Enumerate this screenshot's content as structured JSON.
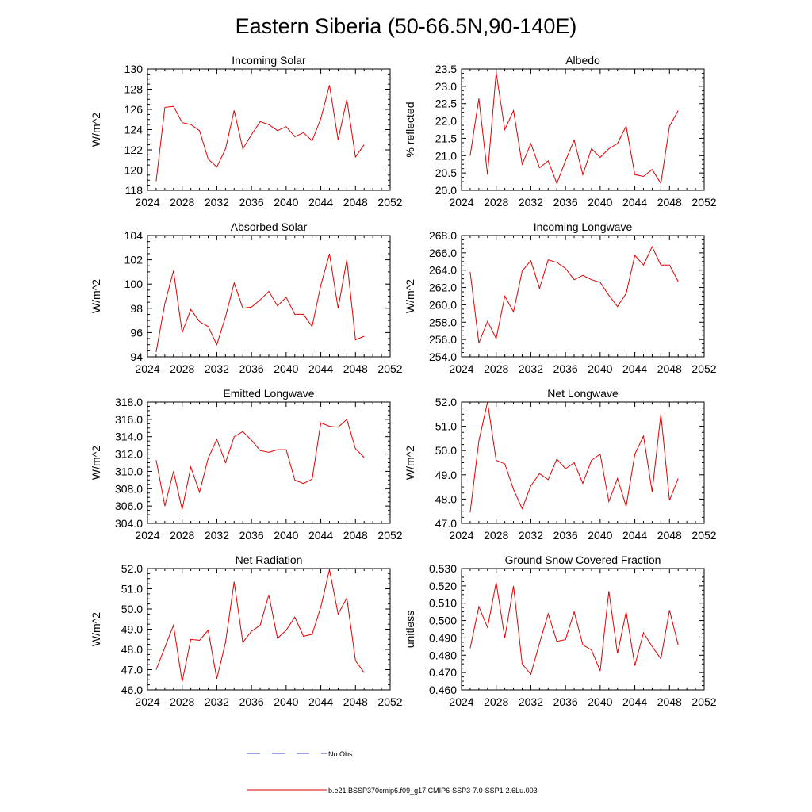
{
  "figure": {
    "title": "Eastern Siberia (50-66.5N,90-140E)",
    "legend": [
      {
        "label": "No Obs",
        "color": "#3b3bd0",
        "style": "dashed"
      },
      {
        "label": "b.e21.BSSP370cmip6.f09_g17.CMIP6-SSP3-7.0-SSP1-2.6Lu.003",
        "color": "#e00000",
        "style": "solid"
      }
    ]
  },
  "chart_data": [
    {
      "type": "line",
      "title": "Incoming Solar",
      "ylabel": "W/m^2",
      "xlim": [
        2024,
        2052
      ],
      "ylim": [
        118,
        130
      ],
      "xticks": [
        "2024",
        "2028",
        "2032",
        "2036",
        "2040",
        "2044",
        "2048",
        "2052"
      ],
      "yticks": [
        "118",
        "120",
        "122",
        "124",
        "126",
        "128",
        "130"
      ],
      "x": [
        2025,
        2026,
        2027,
        2028,
        2029,
        2030,
        2031,
        2032,
        2033,
        2034,
        2035,
        2036,
        2037,
        2038,
        2039,
        2040,
        2041,
        2042,
        2043,
        2044,
        2045,
        2046,
        2047,
        2048,
        2049
      ],
      "series": [
        {
          "color": "#e00000",
          "values": [
            118.9,
            126.2,
            126.3,
            124.7,
            124.5,
            123.9,
            121.1,
            120.3,
            122.1,
            125.9,
            122.1,
            123.5,
            124.8,
            124.5,
            123.9,
            124.3,
            123.3,
            123.7,
            122.9,
            125.1,
            128.4,
            123.0,
            127.0,
            121.3,
            122.5
          ]
        }
      ]
    },
    {
      "type": "line",
      "title": "Albedo",
      "ylabel": "% reflected",
      "xlim": [
        2024,
        2052
      ],
      "ylim": [
        20.0,
        23.5
      ],
      "xticks": [
        "2024",
        "2028",
        "2032",
        "2036",
        "2040",
        "2044",
        "2048",
        "2052"
      ],
      "yticks": [
        "20.0",
        "20.5",
        "21.0",
        "21.5",
        "22.0",
        "22.5",
        "23.0",
        "23.5"
      ],
      "x": [
        2025,
        2026,
        2027,
        2028,
        2029,
        2030,
        2031,
        2032,
        2033,
        2034,
        2035,
        2036,
        2037,
        2038,
        2039,
        2040,
        2041,
        2042,
        2043,
        2044,
        2045,
        2046,
        2047,
        2048,
        2049
      ],
      "series": [
        {
          "color": "#e00000",
          "values": [
            21.0,
            22.65,
            20.45,
            23.4,
            21.75,
            22.3,
            20.75,
            21.35,
            20.65,
            20.85,
            20.2,
            20.85,
            21.45,
            20.45,
            21.2,
            20.95,
            21.2,
            21.35,
            21.85,
            20.45,
            20.4,
            20.6,
            20.2,
            21.85,
            22.3
          ]
        }
      ]
    },
    {
      "type": "line",
      "title": "Absorbed Solar",
      "ylabel": "W/m^2",
      "xlim": [
        2024,
        2052
      ],
      "ylim": [
        94,
        104
      ],
      "xticks": [
        "2024",
        "2028",
        "2032",
        "2036",
        "2040",
        "2044",
        "2048",
        "2052"
      ],
      "yticks": [
        "94",
        "96",
        "98",
        "100",
        "102",
        "104"
      ],
      "x": [
        2025,
        2026,
        2027,
        2028,
        2029,
        2030,
        2031,
        2032,
        2033,
        2034,
        2035,
        2036,
        2037,
        2038,
        2039,
        2040,
        2041,
        2042,
        2043,
        2044,
        2045,
        2046,
        2047,
        2048,
        2049
      ],
      "series": [
        {
          "color": "#e00000",
          "values": [
            94.4,
            98.4,
            101.1,
            96.0,
            97.9,
            96.9,
            96.5,
            95.0,
            97.3,
            100.1,
            98.0,
            98.1,
            98.7,
            99.4,
            98.2,
            98.9,
            97.5,
            97.5,
            96.5,
            99.9,
            102.5,
            98.0,
            102.0,
            95.4,
            95.7
          ]
        }
      ]
    },
    {
      "type": "line",
      "title": "Incoming Longwave",
      "ylabel": "W/m^2",
      "xlim": [
        2024,
        2052
      ],
      "ylim": [
        254.0,
        268.0
      ],
      "xticks": [
        "2024",
        "2028",
        "2032",
        "2036",
        "2040",
        "2044",
        "2048",
        "2052"
      ],
      "yticks": [
        "254.0",
        "256.0",
        "258.0",
        "260.0",
        "262.0",
        "264.0",
        "266.0",
        "268.0"
      ],
      "x": [
        2025,
        2026,
        2027,
        2028,
        2029,
        2030,
        2031,
        2032,
        2033,
        2034,
        2035,
        2036,
        2037,
        2038,
        2039,
        2040,
        2041,
        2042,
        2043,
        2044,
        2045,
        2046,
        2047,
        2048,
        2049
      ],
      "series": [
        {
          "color": "#e00000",
          "values": [
            263.8,
            255.6,
            258.1,
            256.1,
            261.0,
            259.2,
            263.9,
            265.1,
            261.9,
            265.2,
            264.9,
            264.2,
            262.9,
            263.4,
            262.9,
            262.6,
            261.1,
            259.8,
            261.3,
            265.7,
            264.6,
            266.7,
            264.6,
            264.6,
            262.7
          ]
        }
      ]
    },
    {
      "type": "line",
      "title": "Emitted Longwave",
      "ylabel": "W/m^2",
      "xlim": [
        2024,
        2052
      ],
      "ylim": [
        304.0,
        318.0
      ],
      "xticks": [
        "2024",
        "2028",
        "2032",
        "2036",
        "2040",
        "2044",
        "2048",
        "2052"
      ],
      "yticks": [
        "304.0",
        "306.0",
        "308.0",
        "310.0",
        "312.0",
        "314.0",
        "316.0",
        "318.0"
      ],
      "x": [
        2025,
        2026,
        2027,
        2028,
        2029,
        2030,
        2031,
        2032,
        2033,
        2034,
        2035,
        2036,
        2037,
        2038,
        2039,
        2040,
        2041,
        2042,
        2043,
        2044,
        2045,
        2046,
        2047,
        2048,
        2049
      ],
      "series": [
        {
          "color": "#e00000",
          "values": [
            311.3,
            306.0,
            310.0,
            305.6,
            310.5,
            307.6,
            311.5,
            313.7,
            311.0,
            314.0,
            314.6,
            313.6,
            312.4,
            312.2,
            312.5,
            312.5,
            309.0,
            308.6,
            309.1,
            315.6,
            315.2,
            315.1,
            316.0,
            312.6,
            311.6
          ]
        }
      ]
    },
    {
      "type": "line",
      "title": "Net Longwave",
      "ylabel": "W/m^2",
      "xlim": [
        2024,
        2052
      ],
      "ylim": [
        47.0,
        52.0
      ],
      "xticks": [
        "2024",
        "2028",
        "2032",
        "2036",
        "2040",
        "2044",
        "2048",
        "2052"
      ],
      "yticks": [
        "47.0",
        "48.0",
        "49.0",
        "50.0",
        "51.0",
        "52.0"
      ],
      "x": [
        2025,
        2026,
        2027,
        2028,
        2029,
        2030,
        2031,
        2032,
        2033,
        2034,
        2035,
        2036,
        2037,
        2038,
        2039,
        2040,
        2041,
        2042,
        2043,
        2044,
        2045,
        2046,
        2047,
        2048,
        2049
      ],
      "series": [
        {
          "color": "#e00000",
          "values": [
            47.45,
            50.4,
            52.0,
            49.6,
            49.45,
            48.4,
            47.6,
            48.55,
            49.05,
            48.8,
            49.65,
            49.25,
            49.5,
            48.65,
            49.6,
            49.85,
            47.9,
            48.85,
            47.7,
            49.85,
            50.6,
            48.3,
            51.5,
            47.95,
            48.85
          ]
        }
      ]
    },
    {
      "type": "line",
      "title": "Net Radiation",
      "ylabel": "W/m^2",
      "xlim": [
        2024,
        2052
      ],
      "ylim": [
        46.0,
        52.0
      ],
      "xticks": [
        "2024",
        "2028",
        "2032",
        "2036",
        "2040",
        "2044",
        "2048",
        "2052"
      ],
      "yticks": [
        "46.0",
        "47.0",
        "48.0",
        "49.0",
        "50.0",
        "51.0",
        "52.0"
      ],
      "x": [
        2025,
        2026,
        2027,
        2028,
        2029,
        2030,
        2031,
        2032,
        2033,
        2034,
        2035,
        2036,
        2037,
        2038,
        2039,
        2040,
        2041,
        2042,
        2043,
        2044,
        2045,
        2046,
        2047,
        2048,
        2049
      ],
      "series": [
        {
          "color": "#e00000",
          "values": [
            47.0,
            48.1,
            49.2,
            46.4,
            48.5,
            48.45,
            48.95,
            46.55,
            48.35,
            51.35,
            48.35,
            48.9,
            49.2,
            50.7,
            48.55,
            48.95,
            49.6,
            48.65,
            48.75,
            50.1,
            51.95,
            49.75,
            50.55,
            47.45,
            46.85
          ]
        }
      ]
    },
    {
      "type": "line",
      "title": "Ground Snow Covered Fraction",
      "ylabel": "unitless",
      "xlim": [
        2024,
        2052
      ],
      "ylim": [
        0.46,
        0.53
      ],
      "xticks": [
        "2024",
        "2028",
        "2032",
        "2036",
        "2040",
        "2044",
        "2048",
        "2052"
      ],
      "yticks": [
        "0.460",
        "0.470",
        "0.480",
        "0.490",
        "0.500",
        "0.510",
        "0.520",
        "0.530"
      ],
      "x": [
        2025,
        2026,
        2027,
        2028,
        2029,
        2030,
        2031,
        2032,
        2033,
        2034,
        2035,
        2036,
        2037,
        2038,
        2039,
        2040,
        2041,
        2042,
        2043,
        2044,
        2045,
        2046,
        2047,
        2048,
        2049
      ],
      "series": [
        {
          "color": "#e00000",
          "values": [
            0.484,
            0.508,
            0.496,
            0.522,
            0.49,
            0.52,
            0.475,
            0.469,
            0.487,
            0.504,
            0.488,
            0.489,
            0.505,
            0.486,
            0.483,
            0.471,
            0.517,
            0.481,
            0.505,
            0.474,
            0.493,
            0.485,
            0.478,
            0.506,
            0.486
          ]
        }
      ]
    }
  ]
}
